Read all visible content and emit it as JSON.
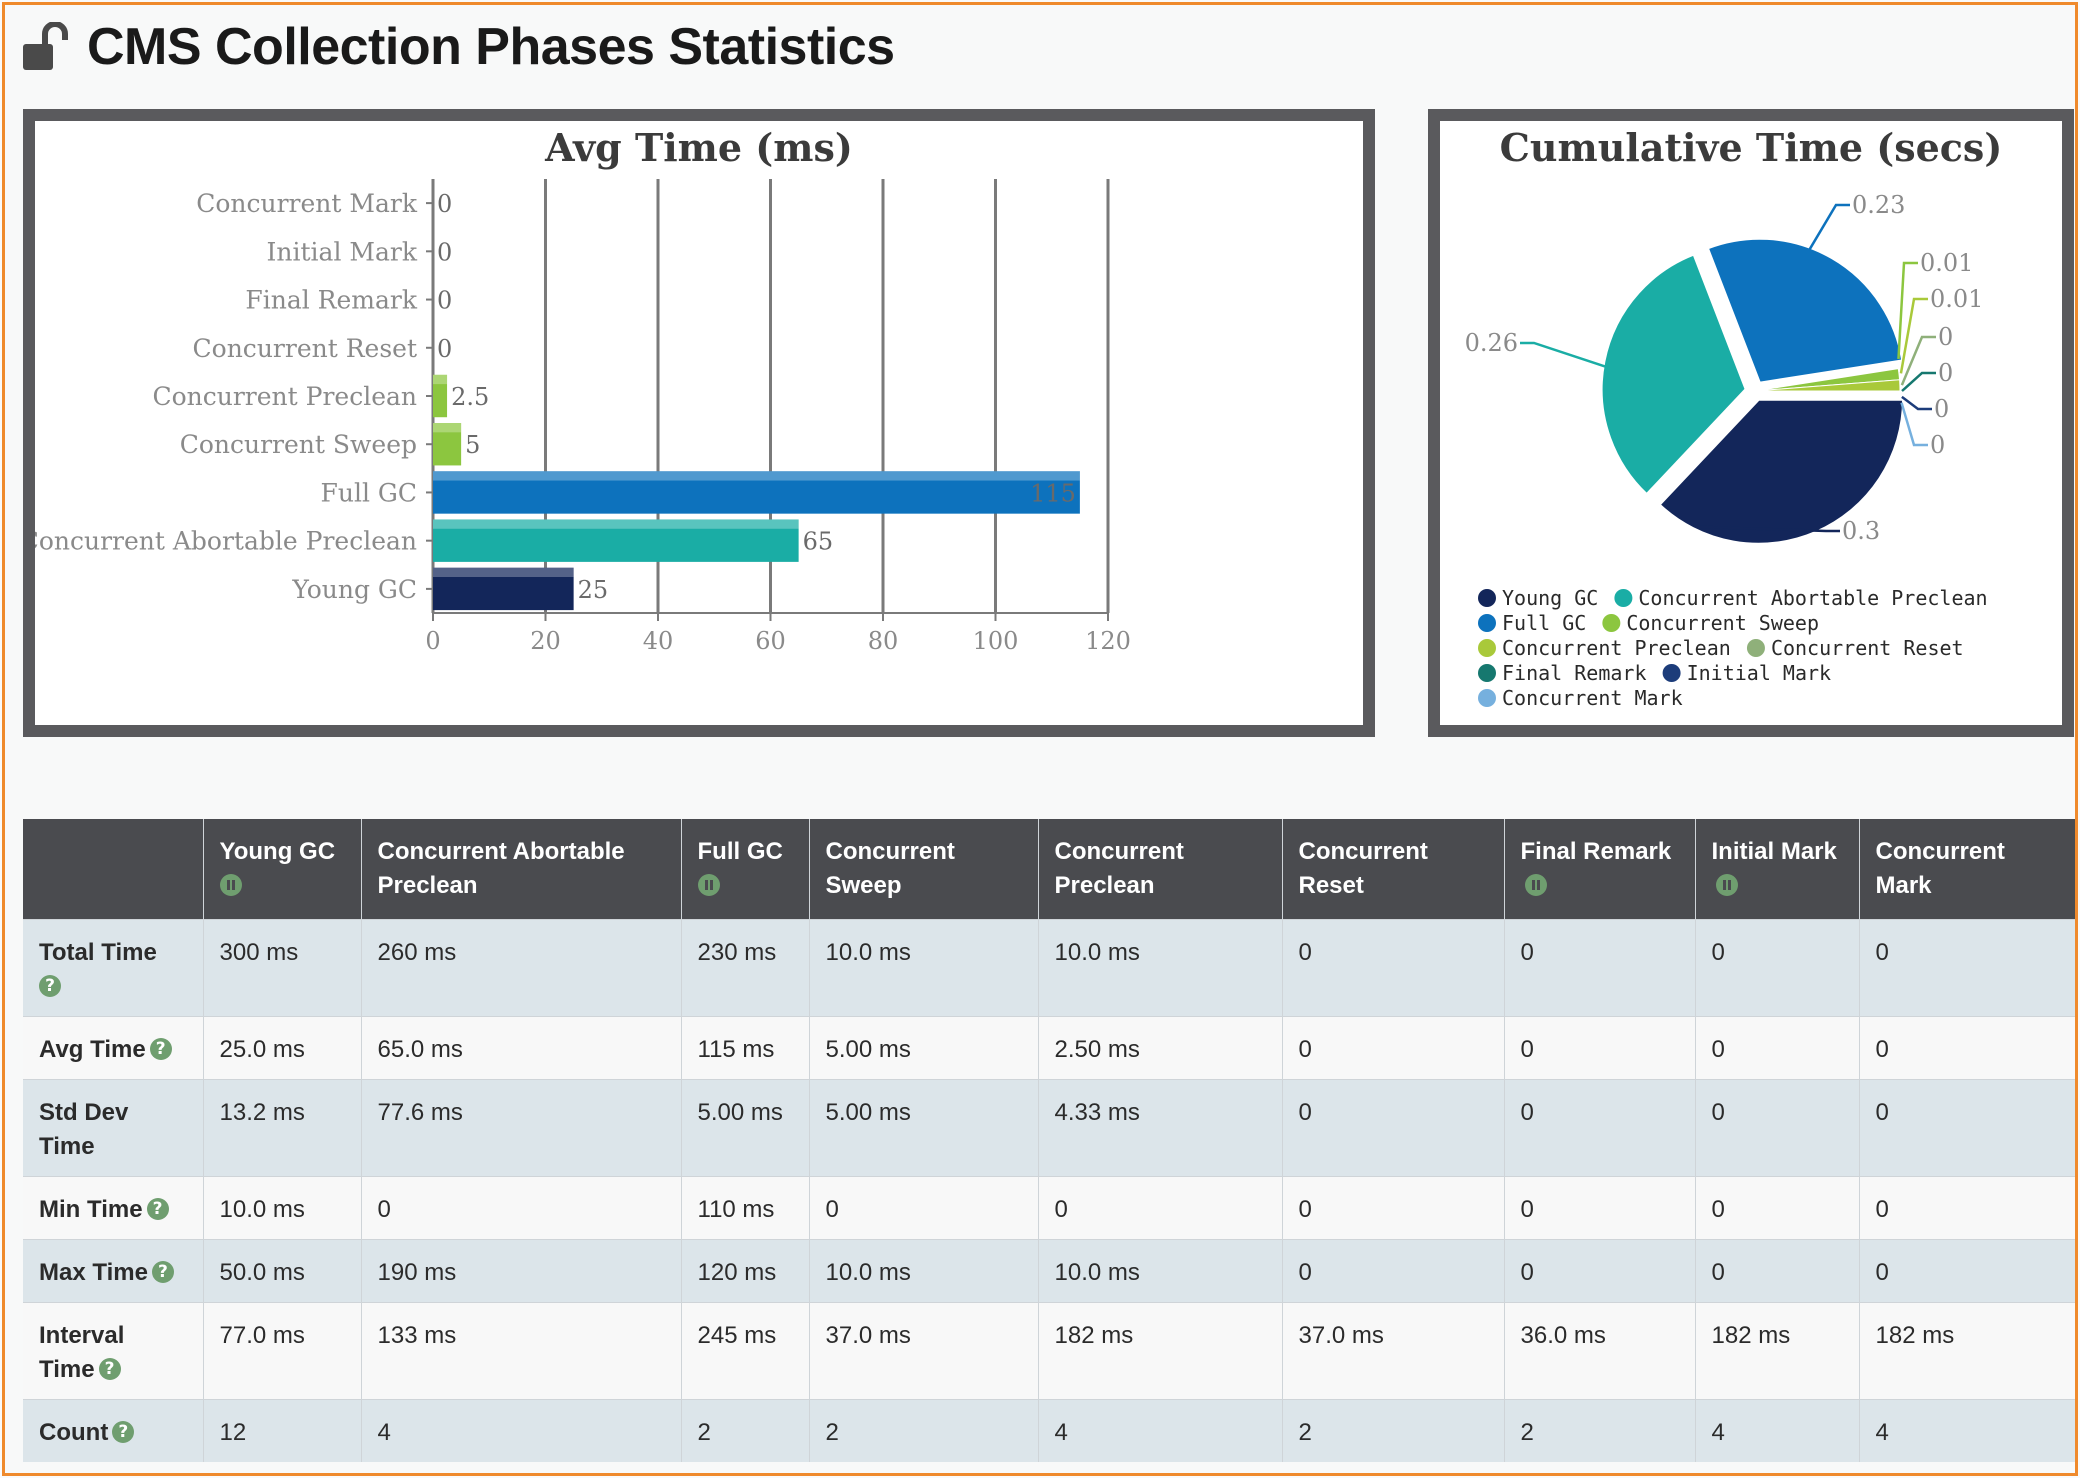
{
  "page": {
    "title": "CMS Collection Phases Statistics"
  },
  "chart_data": [
    {
      "type": "bar",
      "orientation": "horizontal",
      "title": "Avg Time (ms)",
      "categories": [
        "Concurrent Mark",
        "Initial Mark",
        "Final Remark",
        "Concurrent Reset",
        "Concurrent Preclean",
        "Concurrent Sweep",
        "Full GC",
        "Concurrent Abortable Preclean",
        "Young GC"
      ],
      "values": [
        0,
        0,
        0,
        0,
        2.5,
        5,
        115,
        65,
        25
      ],
      "value_labels": [
        "0",
        "0",
        "0",
        "0",
        "2.5",
        "5",
        "115",
        "65",
        "25"
      ],
      "colors": [
        "#8fb33b",
        "#8fb33b",
        "#8fb33b",
        "#8fb33b",
        "#8cc63f",
        "#8cc63f",
        "#0d72bd",
        "#1aada5",
        "#13265a"
      ],
      "xlim": [
        0,
        120
      ],
      "xticks": [
        "0",
        "20",
        "40",
        "60",
        "80",
        "100",
        "120"
      ],
      "grid": true
    },
    {
      "type": "pie",
      "title": "Cumulative Time (secs)",
      "slices": [
        {
          "label": "Young GC",
          "value": 0.3,
          "value_label": "0.3",
          "color": "#13265a"
        },
        {
          "label": "Concurrent Abortable Preclean",
          "value": 0.26,
          "value_label": "0.26",
          "color": "#1aada5"
        },
        {
          "label": "Full GC",
          "value": 0.23,
          "value_label": "0.23",
          "color": "#0d72bd"
        },
        {
          "label": "Concurrent Sweep",
          "value": 0.01,
          "value_label": "0.01",
          "color": "#8cc63f"
        },
        {
          "label": "Concurrent Preclean",
          "value": 0.01,
          "value_label": "0.01",
          "color": "#a9c93a"
        },
        {
          "label": "Concurrent Reset",
          "value": 0,
          "value_label": "0",
          "color": "#8fb07a"
        },
        {
          "label": "Final Remark",
          "value": 0,
          "value_label": "0",
          "color": "#16786f"
        },
        {
          "label": "Initial Mark",
          "value": 0,
          "value_label": "0",
          "color": "#1c3c7a"
        },
        {
          "label": "Concurrent Mark",
          "value": 0,
          "value_label": "0",
          "color": "#76b0de"
        }
      ],
      "legend": "bottom"
    }
  ],
  "table": {
    "columns": [
      {
        "label": "",
        "icon": ""
      },
      {
        "label": "Young GC",
        "icon": "pause-icon"
      },
      {
        "label": "Concurrent Abortable Preclean",
        "icon": ""
      },
      {
        "label": "Full GC",
        "icon": "pause-icon"
      },
      {
        "label": "Concurrent Sweep",
        "icon": ""
      },
      {
        "label": "Concurrent Preclean",
        "icon": ""
      },
      {
        "label": "Concurrent Reset",
        "icon": ""
      },
      {
        "label": "Final Remark",
        "icon": "pause-icon"
      },
      {
        "label": "Initial Mark",
        "icon": "pause-icon"
      },
      {
        "label": "Concurrent Mark",
        "icon": ""
      }
    ],
    "rows": [
      {
        "label": "Total Time",
        "help": true,
        "cells": [
          "300 ms",
          "260 ms",
          "230 ms",
          "10.0 ms",
          "10.0 ms",
          "0",
          "0",
          "0",
          "0"
        ]
      },
      {
        "label": "Avg Time",
        "help": true,
        "cells": [
          "25.0 ms",
          "65.0 ms",
          "115 ms",
          "5.00 ms",
          "2.50 ms",
          "0",
          "0",
          "0",
          "0"
        ]
      },
      {
        "label": "Std Dev Time",
        "help": false,
        "cells": [
          "13.2 ms",
          "77.6 ms",
          "5.00 ms",
          "5.00 ms",
          "4.33 ms",
          "0",
          "0",
          "0",
          "0"
        ]
      },
      {
        "label": "Min Time",
        "help": true,
        "cells": [
          "10.0 ms",
          "0",
          "110 ms",
          "0",
          "0",
          "0",
          "0",
          "0",
          "0"
        ]
      },
      {
        "label": "Max Time",
        "help": true,
        "cells": [
          "50.0 ms",
          "190 ms",
          "120 ms",
          "10.0 ms",
          "10.0 ms",
          "0",
          "0",
          "0",
          "0"
        ]
      },
      {
        "label": "Interval Time",
        "help": true,
        "cells": [
          "77.0 ms",
          "133 ms",
          "245 ms",
          "37.0 ms",
          "182 ms",
          "37.0 ms",
          "36.0 ms",
          "182 ms",
          "182 ms"
        ]
      },
      {
        "label": "Count",
        "help": true,
        "cells": [
          "12",
          "4",
          "2",
          "2",
          "4",
          "2",
          "2",
          "4",
          "4"
        ]
      }
    ]
  }
}
